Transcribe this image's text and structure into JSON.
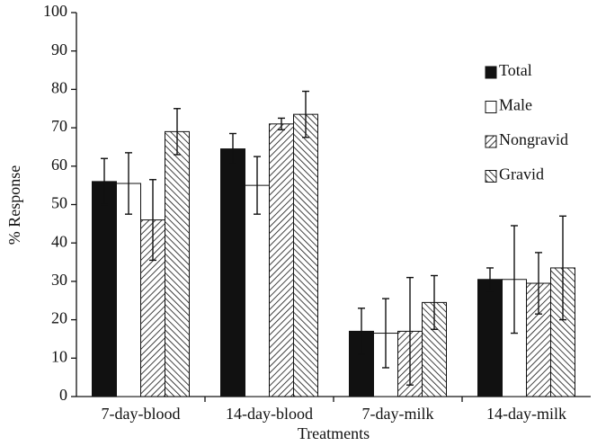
{
  "chart_data": {
    "type": "bar",
    "x_label": "Treatments",
    "y_label": "% Response",
    "categories": [
      "7-day-blood",
      "14-day-blood",
      "7-day-milk",
      "14-day-milk"
    ],
    "series": [
      {
        "name": "Total",
        "color": "#111111",
        "pattern": "solid",
        "values": [
          56,
          64.5,
          17,
          30.5
        ],
        "errors": [
          6,
          4,
          6,
          3
        ]
      },
      {
        "name": "Male",
        "color": "#ffffff",
        "pattern": "solid",
        "values": [
          55.5,
          55,
          16.5,
          30.5
        ],
        "errors": [
          8,
          7.5,
          9,
          14
        ]
      },
      {
        "name": "Nongravid",
        "color": "#ffffff",
        "pattern": "hatch-forward",
        "values": [
          46,
          71,
          17,
          29.5
        ],
        "errors": [
          10.5,
          1.5,
          14,
          8
        ]
      },
      {
        "name": "Gravid",
        "color": "#ffffff",
        "pattern": "hatch-backward",
        "values": [
          69,
          73.5,
          24.5,
          33.5
        ],
        "errors": [
          6,
          6,
          7,
          13.5
        ]
      }
    ],
    "ylim": [
      0,
      100
    ],
    "yticks": [
      0,
      10,
      20,
      30,
      40,
      50,
      60,
      70,
      80,
      90,
      100
    ],
    "legend": "upper right"
  }
}
